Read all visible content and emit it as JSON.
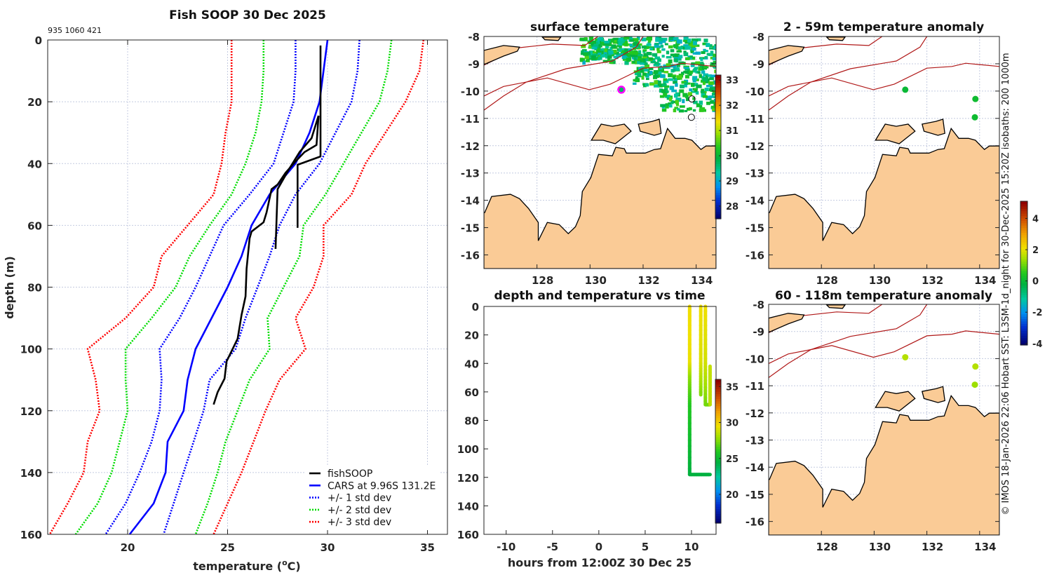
{
  "figure_title": "Fish SOOP 30 Dec 2025",
  "id_text": "935 1060 421",
  "credit": "© IMOS 18-Jan-2026 22:06 Hobart SST: L3SM-1d_night for 30-Dec-2025 15:20Z isobaths: 200  1000m",
  "colors": {
    "land": "#facb96",
    "isobath": "#b01818",
    "grid": "#c4cbe0",
    "cars": "#0000ff",
    "sd1": "#0000ff",
    "sd2": "#00dd00",
    "sd3": "#ff0000",
    "fishsoop": "#000000",
    "ship_marker": "#ff00ff"
  },
  "chart_data": [
    {
      "id": "profile",
      "type": "line",
      "title": "Fish SOOP 30 Dec 2025",
      "xlabel_prefix": "temperature (",
      "xlabel_sup": "o",
      "xlabel_suffix": "C)",
      "ylabel": "depth (m)",
      "xlim": [
        16,
        36
      ],
      "ylim": [
        160,
        0
      ],
      "xticks": [
        20,
        25,
        30,
        35
      ],
      "yticks": [
        0,
        20,
        40,
        60,
        80,
        100,
        120,
        140,
        160
      ],
      "grid": true,
      "legend_position": "bottom-right",
      "depth": [
        0,
        10,
        20,
        30,
        40,
        50,
        60,
        70,
        80,
        90,
        100,
        110,
        120,
        130,
        140,
        150,
        160
      ],
      "cars": {
        "name": "CARS at 9.96S 131.2E",
        "temperature": [
          30.0,
          29.8,
          29.6,
          29.1,
          28.4,
          27.1,
          26.2,
          25.7,
          25.0,
          24.2,
          23.4,
          23.0,
          22.8,
          22.0,
          21.9,
          21.3,
          20.1
        ]
      },
      "std_bands": [
        {
          "name": "+/- 1 std dev",
          "color_key": "sd1",
          "lower": [
            28.4,
            28.4,
            28.3,
            27.8,
            27.3,
            26.1,
            24.8,
            24.1,
            23.4,
            22.6,
            21.6,
            21.7,
            21.6,
            21.2,
            20.6,
            19.9,
            18.9
          ],
          "upper": [
            31.6,
            31.5,
            31.2,
            30.4,
            29.6,
            28.4,
            27.6,
            27.1,
            26.5,
            25.9,
            25.4,
            24.1,
            23.8,
            23.3,
            22.8,
            22.3,
            21.8
          ]
        },
        {
          "name": "+/- 2 std dev",
          "color_key": "sd2",
          "lower": [
            26.8,
            26.8,
            26.7,
            26.4,
            25.9,
            25.2,
            24.1,
            23.1,
            22.4,
            21.2,
            19.9,
            19.9,
            20.0,
            19.6,
            19.2,
            18.5,
            17.4
          ],
          "upper": [
            33.2,
            33.0,
            32.6,
            31.7,
            30.8,
            29.9,
            28.8,
            28.6,
            27.8,
            27.0,
            27.1,
            26.1,
            25.5,
            24.9,
            24.5,
            24.0,
            23.4
          ]
        },
        {
          "name": "+/- 3 std dev",
          "color_key": "sd3",
          "lower": [
            25.2,
            25.2,
            25.2,
            24.9,
            24.7,
            24.3,
            23.0,
            21.7,
            21.3,
            19.9,
            18.0,
            18.4,
            18.6,
            18.0,
            17.8,
            17.0,
            16.1
          ],
          "upper": [
            34.8,
            34.6,
            33.9,
            32.9,
            31.9,
            31.2,
            29.8,
            29.8,
            29.3,
            28.4,
            28.9,
            27.6,
            26.9,
            26.3,
            25.7,
            25.0,
            24.3
          ]
        }
      ],
      "fishsoop": {
        "name": "fishSOOP",
        "casts": [
          {
            "depth": [
              1.8,
              37.7,
              40.4,
              60.8
            ],
            "temperature": [
              29.65,
              29.65,
              28.5,
              28.5
            ]
          },
          {
            "depth": [
              24.5,
              34,
              36.3,
              39.3,
              43,
              46.8,
              48.3,
              55.8,
              59,
              62,
              64.2,
              74,
              83,
              89,
              96.7,
              104,
              109.6,
              114,
              118
            ],
            "temperature": [
              29.55,
              29.45,
              28.85,
              28.4,
              27.9,
              27.5,
              27.2,
              26.95,
              26.8,
              26.2,
              26.1,
              25.95,
              25.9,
              25.7,
              25.5,
              24.95,
              24.85,
              24.5,
              24.3
            ]
          },
          {
            "depth": [
              24.5,
              31.8,
              36.3,
              41.5,
              43.8,
              48.3,
              67.6
            ],
            "temperature": [
              29.55,
              29.2,
              28.6,
              28.1,
              27.9,
              27.5,
              27.4
            ]
          }
        ]
      }
    },
    {
      "id": "sst_map",
      "type": "heatmap",
      "title": "surface temperature",
      "xlim": [
        126,
        134.75
      ],
      "ylim": [
        -16.5,
        -8
      ],
      "xticks": [
        128,
        130,
        132,
        134
      ],
      "yticks": [
        -8,
        -9,
        -10,
        -11,
        -12,
        -13,
        -14,
        -15,
        -16
      ],
      "colorbar": {
        "range": [
          27.5,
          33.2
        ],
        "ticks": [
          28,
          29,
          30,
          31,
          32,
          33
        ]
      },
      "markers": [
        {
          "lon": 131.18,
          "lat": -9.95,
          "style": "ship",
          "value": 29.7
        },
        {
          "lon": 133.84,
          "lat": -10.29,
          "style": "open"
        },
        {
          "lon": 133.82,
          "lat": -10.96,
          "style": "open"
        }
      ],
      "sst_field_range": [
        29.0,
        30.6
      ]
    },
    {
      "id": "depth_time",
      "type": "scatter",
      "title": "depth and temperature vs time",
      "xlabel": "hours from 12:00Z 30 Dec 25",
      "xlim": [
        -12.4,
        12.65
      ],
      "ylim": [
        160,
        0
      ],
      "xticks": [
        -10,
        -5,
        0,
        5,
        10
      ],
      "yticks": [
        0,
        20,
        40,
        60,
        80,
        100,
        120,
        140,
        160
      ],
      "colorbar": {
        "range": [
          16,
          36
        ],
        "ticks": [
          20,
          25,
          30,
          35
        ]
      },
      "tracks": [
        [
          [
            9.8,
            0,
            29.7
          ],
          [
            9.8,
            40,
            29.5
          ],
          [
            9.8,
            50,
            27.8
          ],
          [
            9.8,
            70,
            26.0
          ],
          [
            9.8,
            118,
            24.5
          ],
          [
            12.0,
            118,
            24.4
          ]
        ],
        [
          [
            11.0,
            0,
            29.6
          ],
          [
            11.0,
            40,
            29.2
          ],
          [
            11.0,
            62,
            27.5
          ]
        ],
        [
          [
            11.5,
            0,
            29.6
          ],
          [
            11.5,
            40,
            29.0
          ],
          [
            11.5,
            69,
            27.3
          ],
          [
            12.0,
            69,
            27.3
          ]
        ],
        [
          [
            12.0,
            42,
            28.7
          ],
          [
            12.0,
            69,
            28.5
          ]
        ]
      ]
    },
    {
      "id": "anomaly_shallow",
      "type": "heatmap",
      "title": "2 - 59m temperature anomaly",
      "xlim": [
        126,
        134.75
      ],
      "ylim": [
        -16.5,
        -8
      ],
      "xticks": [
        128,
        130,
        132,
        134
      ],
      "yticks": [
        -8,
        -9,
        -10,
        -11,
        -12,
        -13,
        -14,
        -15,
        -16
      ],
      "colorbar": {
        "range": [
          -4.1,
          5.1
        ],
        "ticks": [
          -4,
          -2,
          0,
          2,
          4
        ]
      },
      "markers": [
        {
          "lon": 131.18,
          "lat": -9.95,
          "value": 0.0
        },
        {
          "lon": 133.84,
          "lat": -10.29,
          "value": 0.1
        },
        {
          "lon": 133.82,
          "lat": -10.96,
          "value": 0.1
        }
      ]
    },
    {
      "id": "anomaly_deep",
      "type": "heatmap",
      "title": "60 - 118m temperature anomaly",
      "xlim": [
        126,
        134.75
      ],
      "ylim": [
        -16.5,
        -8
      ],
      "xticks": [
        128,
        130,
        132,
        134
      ],
      "yticks": [
        -8,
        -9,
        -10,
        -11,
        -12,
        -13,
        -14,
        -15,
        -16
      ],
      "markers": [
        {
          "lon": 131.18,
          "lat": -9.95,
          "value": 1.6
        },
        {
          "lon": 133.84,
          "lat": -10.29,
          "value": 1.6
        },
        {
          "lon": 133.82,
          "lat": -10.96,
          "value": 1.4
        }
      ]
    }
  ],
  "map_base": {
    "land": [
      [
        126.03,
        -14.45
      ],
      [
        126.29,
        -13.86
      ],
      [
        127.0,
        -13.78
      ],
      [
        127.34,
        -13.94
      ],
      [
        127.68,
        -14.3
      ],
      [
        128.05,
        -14.81
      ],
      [
        128.05,
        -15.48
      ],
      [
        128.39,
        -14.81
      ],
      [
        128.84,
        -14.89
      ],
      [
        129.18,
        -15.22
      ],
      [
        129.45,
        -14.97
      ],
      [
        129.63,
        -14.56
      ],
      [
        129.71,
        -13.68
      ],
      [
        130.03,
        -13.17
      ],
      [
        130.32,
        -12.32
      ],
      [
        130.84,
        -12.37
      ],
      [
        130.97,
        -12.06
      ],
      [
        131.29,
        -12.11
      ],
      [
        131.37,
        -12.27
      ],
      [
        132.08,
        -12.27
      ],
      [
        132.42,
        -12.14
      ],
      [
        132.66,
        -12.11
      ],
      [
        132.92,
        -11.37
      ],
      [
        133.21,
        -11.73
      ],
      [
        133.58,
        -11.73
      ],
      [
        133.84,
        -11.8
      ],
      [
        134.18,
        -12.14
      ],
      [
        134.37,
        -12.01
      ],
      [
        134.75,
        -12.01
      ],
      [
        134.75,
        -16.5
      ],
      [
        126.0,
        -16.5
      ],
      [
        126.0,
        -14.45
      ]
    ],
    "islands": [
      [
        [
          130.05,
          -11.8
        ],
        [
          130.42,
          -11.21
        ],
        [
          130.84,
          -11.29
        ],
        [
          131.29,
          -11.21
        ],
        [
          131.55,
          -11.47
        ],
        [
          130.95,
          -11.93
        ],
        [
          130.5,
          -11.8
        ]
      ],
      [
        [
          131.82,
          -11.21
        ],
        [
          132.34,
          -11.11
        ],
        [
          132.61,
          -11.03
        ],
        [
          132.68,
          -11.55
        ],
        [
          132.42,
          -11.62
        ],
        [
          131.89,
          -11.47
        ]
      ],
      [
        [
          126.0,
          -8.51
        ],
        [
          126.74,
          -8.33
        ],
        [
          127.34,
          -8.39
        ],
        [
          127.26,
          -8.54
        ],
        [
          126.74,
          -8.72
        ],
        [
          126.0,
          -9.03
        ]
      ],
      [
        [
          128.2,
          -8.02
        ],
        [
          128.9,
          -8.02
        ],
        [
          128.8,
          -8.15
        ],
        [
          128.3,
          -8.12
        ]
      ]
    ],
    "isobaths": [
      [
        [
          126.0,
          -10.18
        ],
        [
          126.74,
          -9.83
        ],
        [
          128.39,
          -9.52
        ],
        [
          129.97,
          -9.95
        ],
        [
          130.76,
          -9.75
        ],
        [
          132.0,
          -9.16
        ],
        [
          132.95,
          -9.1
        ],
        [
          133.47,
          -8.98
        ],
        [
          134.75,
          -9.1
        ]
      ],
      [
        [
          126.0,
          -10.7
        ],
        [
          126.74,
          -10.18
        ],
        [
          127.6,
          -9.67
        ],
        [
          129.1,
          -9.18
        ],
        [
          130.84,
          -8.9
        ],
        [
          131.74,
          -8.39
        ],
        [
          132.0,
          -8.0
        ]
      ],
      [
        [
          126.0,
          -9.05
        ],
        [
          127.34,
          -8.41
        ],
        [
          128.58,
          -8.28
        ],
        [
          129.8,
          -8.33
        ],
        [
          130.3,
          -8.0
        ]
      ]
    ]
  }
}
